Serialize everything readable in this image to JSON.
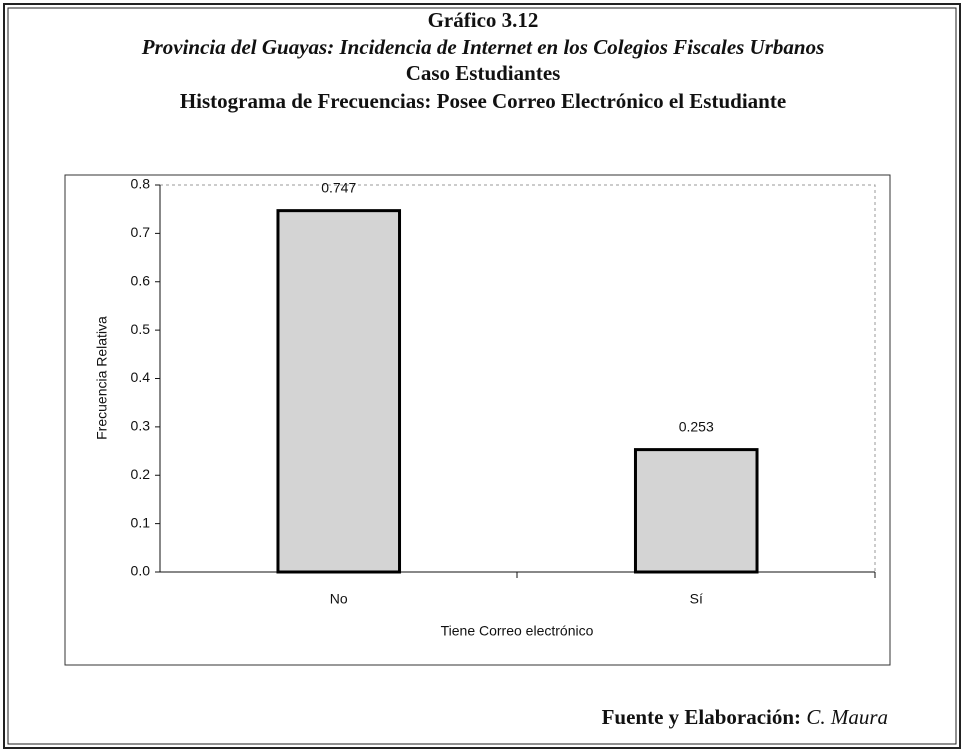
{
  "chart_data": {
    "type": "bar",
    "title": "Gráfico 3.12",
    "subtitle": "Provincia del Guayas: Incidencia de Internet en los Colegios Fiscales Urbanos",
    "subtitle2": "Caso Estudiantes",
    "subtitle3": "Histograma de Frecuencias: Posee Correo Electrónico el Estudiante",
    "categories": [
      "No",
      "Sí"
    ],
    "values": [
      0.747,
      0.253
    ],
    "color": "#d4d4d4",
    "x_label": "Tiene Correo electrónico",
    "y_label": "Frecuencia Relativa",
    "ylim": [
      0,
      0.8
    ],
    "yticks": [
      {
        "value": 0,
        "label": "0.0"
      },
      0.1,
      0.2,
      0.3,
      0.4,
      0.5,
      0.6,
      0.7,
      0.8
    ],
    "grid": false,
    "source_label": "Fuente y Elaboración:",
    "source_value": "C. Maura"
  }
}
